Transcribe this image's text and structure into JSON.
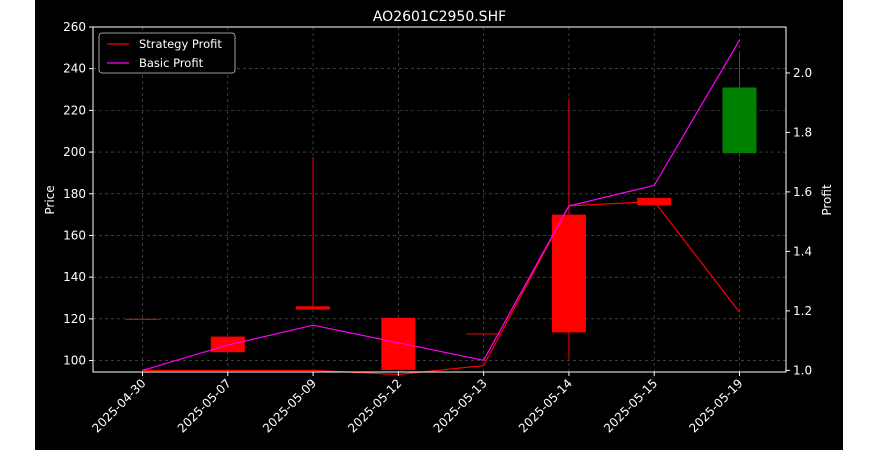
{
  "chart_data": {
    "type": "candlestick",
    "title": "AO2601C2950.SHF",
    "ylabel": "Price",
    "y2label": "Profit",
    "categories": [
      "2025-04-30",
      "2025-05-07",
      "2025-05-09",
      "2025-05-12",
      "2025-05-13",
      "2025-05-14",
      "2025-05-15",
      "2025-05-19"
    ],
    "ylim": [
      94.5,
      260
    ],
    "yticks": [
      "100",
      "120",
      "140",
      "160",
      "180",
      "200",
      "220",
      "240",
      "260"
    ],
    "y2lim": [
      0.9945,
      2.1545
    ],
    "y2ticks": [
      "1.0",
      "1.2",
      "1.4",
      "1.6",
      "1.8",
      "2.0"
    ],
    "grid": true,
    "legend_position": "top-left",
    "candles": [
      {
        "date": "2025-04-30",
        "open": 120,
        "close": 120,
        "high": 120,
        "low": 120,
        "color": "#ff0000"
      },
      {
        "date": "2025-05-07",
        "open": 111.5,
        "close": 104,
        "high": 111.5,
        "low": 104,
        "color": "#ff0000"
      },
      {
        "date": "2025-05-09",
        "open": 126,
        "close": 124.5,
        "high": 197.5,
        "low": 124.5,
        "color": "#ff0000"
      },
      {
        "date": "2025-05-12",
        "open": 120.5,
        "close": 95.5,
        "high": 120.5,
        "low": 95.5,
        "color": "#ff0000"
      },
      {
        "date": "2025-05-13",
        "open": 113,
        "close": 113,
        "high": 113,
        "low": 113,
        "color": "#ff0000"
      },
      {
        "date": "2025-05-14",
        "open": 170,
        "close": 113.5,
        "high": 225.5,
        "low": 101,
        "color": "#ff0000"
      },
      {
        "date": "2025-05-15",
        "open": 178,
        "close": 174.5,
        "high": 178,
        "low": 174.5,
        "color": "#ff0000"
      },
      {
        "date": "2025-05-19",
        "open": 199.5,
        "close": 231,
        "high": 248,
        "low": 197.5,
        "color": "#008000"
      }
    ],
    "series": [
      {
        "name": "Strategy Profit",
        "axis": "right",
        "color": "#ff0000",
        "values": [
          1.0,
          1.0,
          1.0,
          0.986,
          1.016,
          1.553,
          1.568,
          1.196
        ]
      },
      {
        "name": "Basic Profit",
        "axis": "right",
        "color": "#ff00ff",
        "values": [
          1.0,
          1.085,
          1.152,
          null,
          1.034,
          1.553,
          1.622,
          2.11
        ]
      }
    ]
  }
}
